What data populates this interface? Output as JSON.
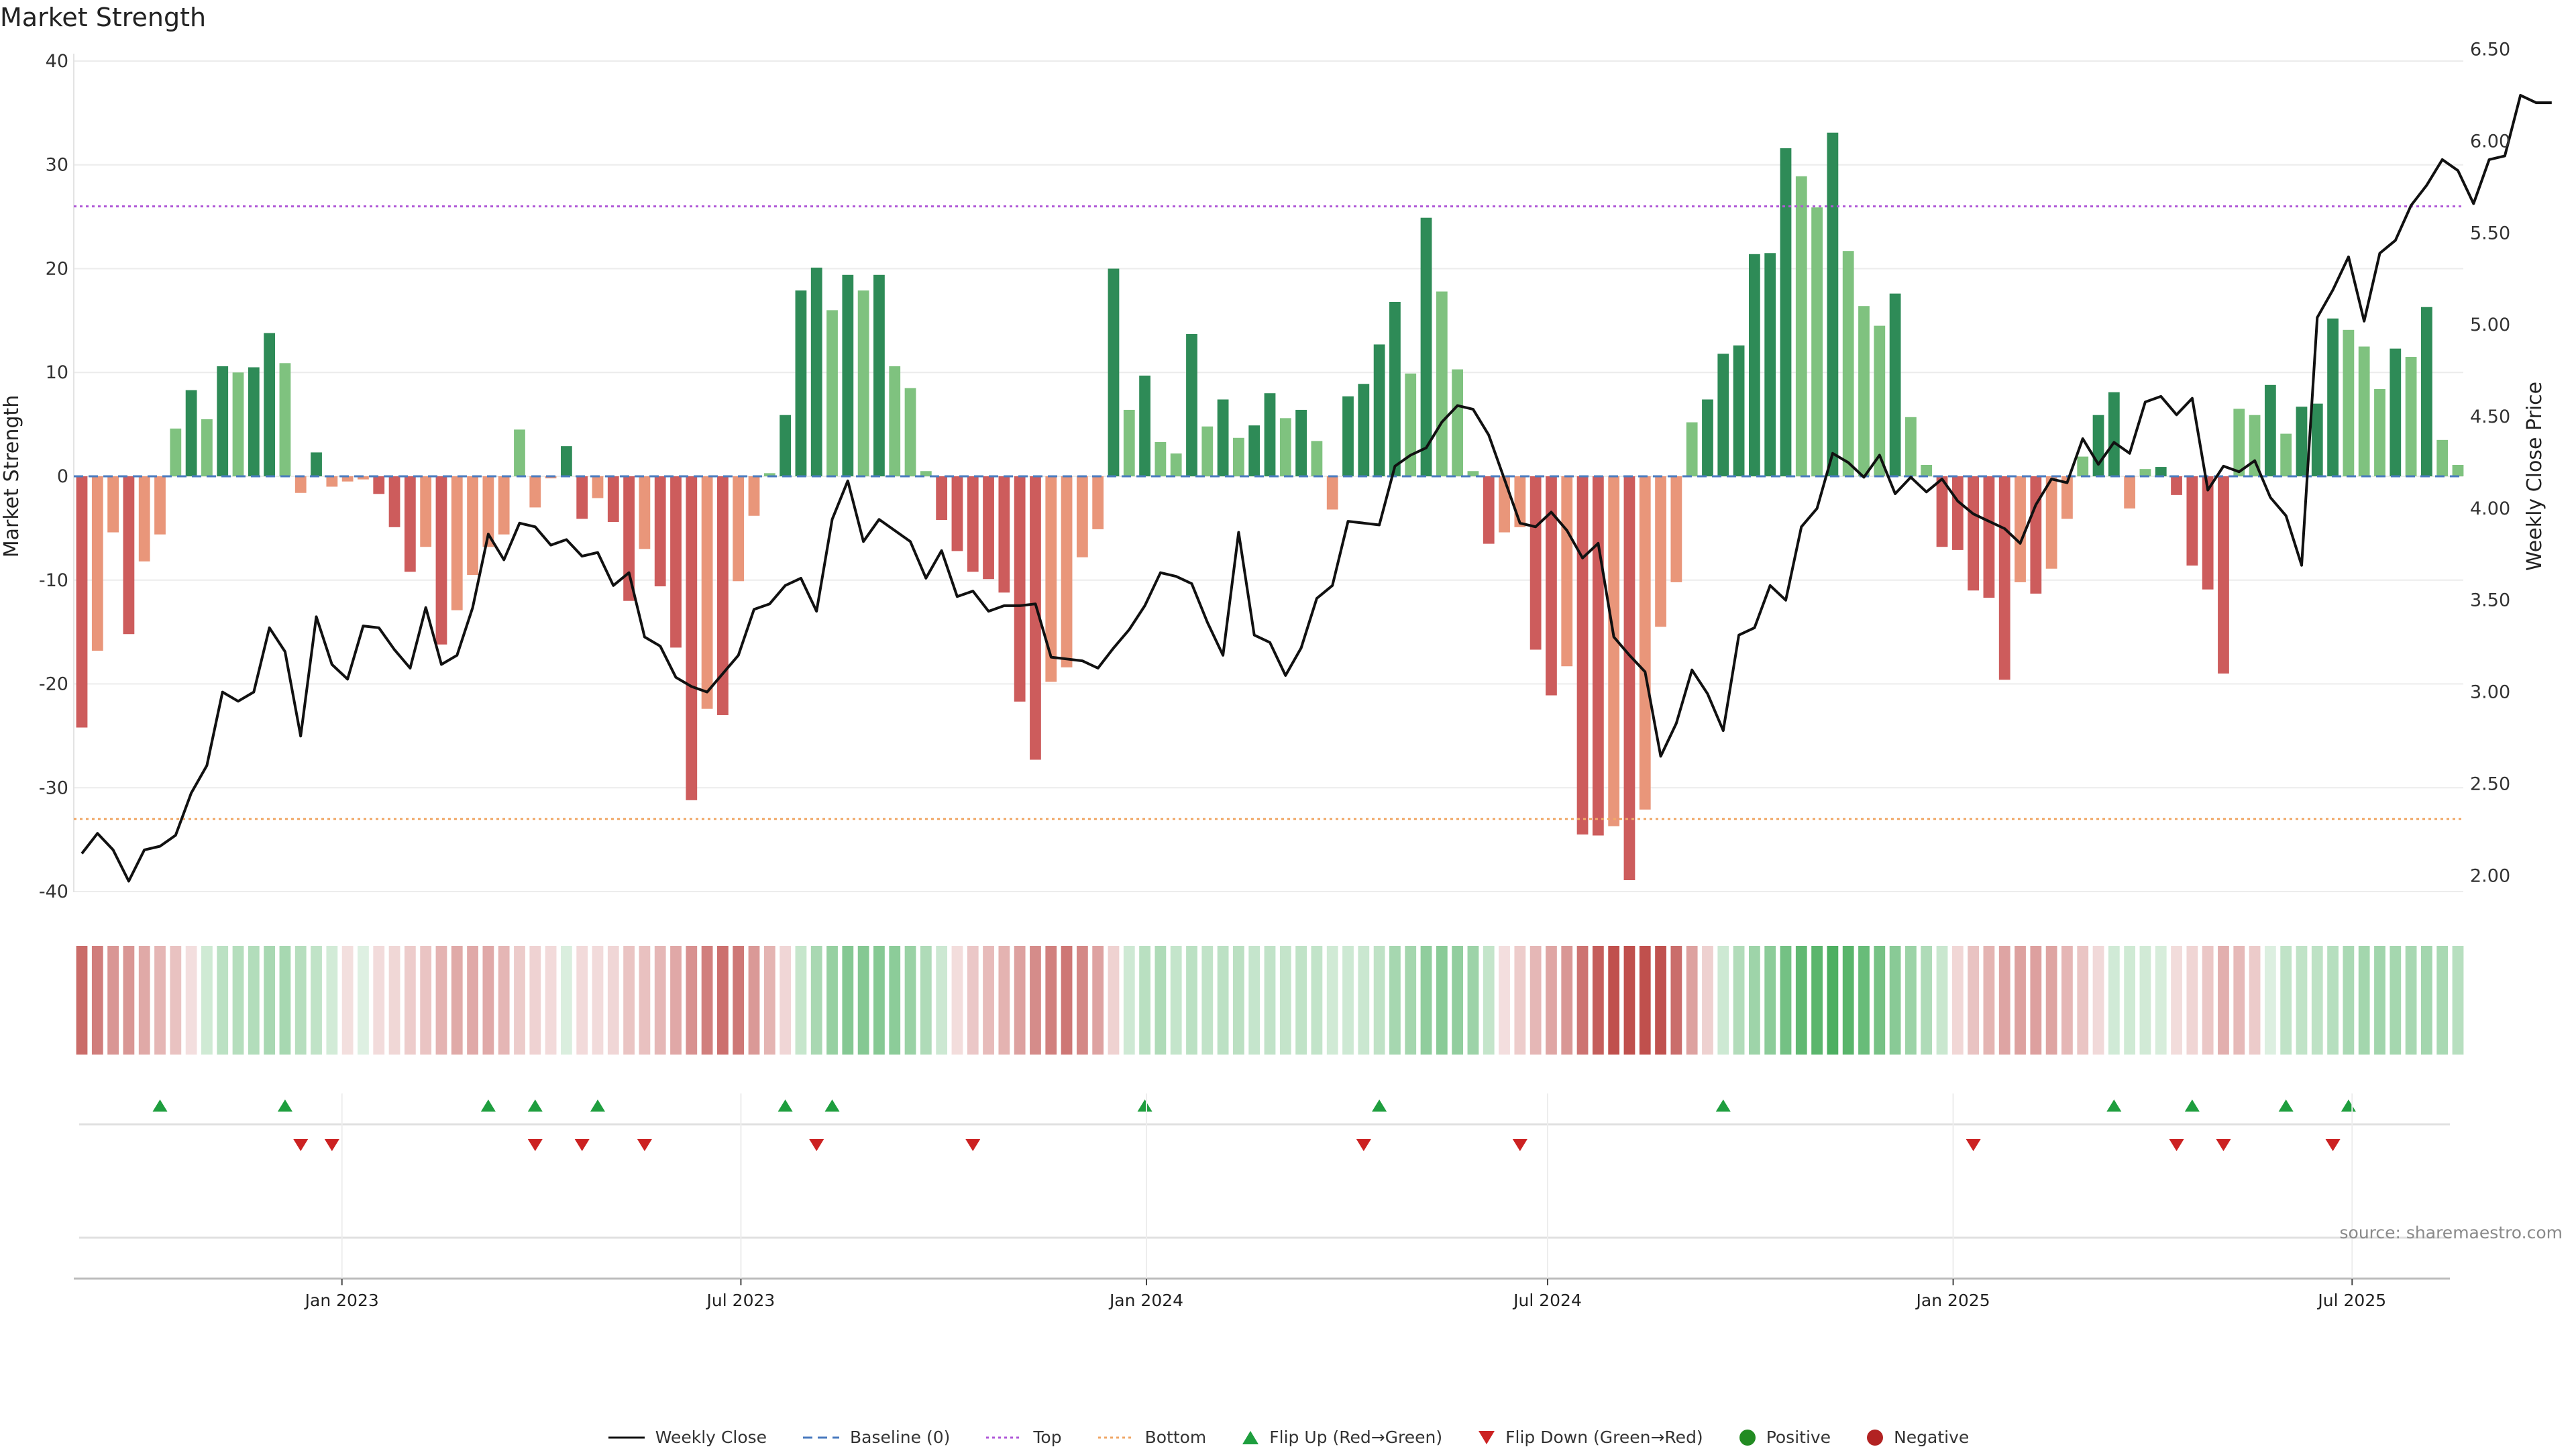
{
  "chart_data": {
    "type": "bar",
    "title": "Market Strength",
    "ylabel": "Market Strength",
    "y2label": "Weekly Close Price",
    "ylim": [
      -42,
      42
    ],
    "y2lim": [
      1.8,
      6.55
    ],
    "yticks": [
      40,
      30,
      20,
      10,
      0,
      -10,
      -20,
      -30,
      -40
    ],
    "y2ticks": [
      "6.50",
      "6.00",
      "5.50",
      "5.00",
      "4.50",
      "4.00",
      "3.50",
      "3.00",
      "2.50",
      "2.00"
    ],
    "x_start": "2022-09-05",
    "x_end": "2025-08-18",
    "x_tick_labels": [
      {
        "date": "2023-01-01",
        "label": "Jan 2023"
      },
      {
        "date": "2023-07-01",
        "label": "Jul 2023"
      },
      {
        "date": "2024-01-01",
        "label": "Jan 2024"
      },
      {
        "date": "2024-07-01",
        "label": "Jul 2024"
      },
      {
        "date": "2025-01-01",
        "label": "Jan 2025"
      },
      {
        "date": "2025-07-01",
        "label": "Jul 2025"
      }
    ],
    "top_threshold": 26,
    "bottom_threshold": -33,
    "strength": [
      -24.2,
      -16.8,
      -5.4,
      -15.2,
      -8.2,
      -5.6,
      4.6,
      8.3,
      5.5,
      10.6,
      10,
      10.5,
      13.8,
      10.9,
      -1.6,
      2.3,
      -1,
      -0.5,
      -0.3,
      -1.7,
      -4.9,
      -9.2,
      -6.8,
      -16.2,
      -12.9,
      -9.5,
      -6.8,
      -5.6,
      4.5,
      -3,
      -0.2,
      2.9,
      -4.1,
      -2.1,
      -4.4,
      -12,
      -7,
      -10.6,
      -16.5,
      -31.2,
      -22.4,
      -23,
      -10.1,
      -3.8,
      0.3,
      5.9,
      17.9,
      20.1,
      16,
      19.4,
      17.9,
      19.4,
      10.6,
      8.5,
      0.5,
      -4.2,
      -7.2,
      -9.2,
      -9.9,
      -11.2,
      -21.7,
      -27.3,
      -19.8,
      -18.4,
      -7.8,
      -5.1,
      20,
      6.4,
      9.7,
      3.3,
      2.2,
      13.7,
      4.8,
      7.4,
      3.7,
      4.9,
      8,
      5.6,
      6.4,
      3.4,
      -3.2,
      7.7,
      8.9,
      12.7,
      16.8,
      9.9,
      24.9,
      17.8,
      10.3,
      0.5,
      -6.5,
      -5.4,
      -4.9,
      -16.7,
      -21.1,
      -18.3,
      -34.5,
      -34.6,
      -33.7,
      -38.9,
      -32.1,
      -14.5,
      -10.2,
      5.2,
      7.4,
      11.8,
      12.6,
      21.4,
      21.5,
      31.6,
      28.9,
      25.9,
      33.1,
      21.7,
      16.4,
      14.5,
      17.6,
      5.7,
      1.1,
      -6.8,
      -7.1,
      -11,
      -11.7,
      -19.6,
      -10.2,
      -11.3,
      -8.9,
      -4.1,
      1.9,
      5.9,
      8.1,
      -3.1,
      0.7,
      0.9,
      -1.8,
      -8.6,
      -10.9,
      -19,
      6.5,
      5.9,
      8.8,
      4.1,
      6.7,
      7,
      15.2,
      14.1,
      12.5,
      8.4,
      12.3,
      11.5,
      16.3,
      3.5,
      1.1
    ],
    "close": [
      2.12,
      2.23,
      2.14,
      1.97,
      2.14,
      2.16,
      2.22,
      2.45,
      2.6,
      3,
      2.95,
      3,
      3.35,
      3.22,
      2.76,
      3.41,
      3.15,
      3.07,
      3.36,
      3.35,
      3.23,
      3.13,
      3.46,
      3.15,
      3.2,
      3.46,
      3.86,
      3.72,
      3.92,
      3.9,
      3.8,
      3.83,
      3.74,
      3.76,
      3.58,
      3.65,
      3.3,
      3.25,
      3.08,
      3.03,
      3,
      3.1,
      3.2,
      3.45,
      3.48,
      3.58,
      3.62,
      3.44,
      3.94,
      4.15,
      3.82,
      3.94,
      3.88,
      3.82,
      3.62,
      3.77,
      3.52,
      3.55,
      3.44,
      3.47,
      3.47,
      3.48,
      3.19,
      3.18,
      3.17,
      3.13,
      3.24,
      3.34,
      3.47,
      3.65,
      3.63,
      3.59,
      3.38,
      3.2,
      3.87,
      3.31,
      3.27,
      3.09,
      3.24,
      3.51,
      3.58,
      3.93,
      3.92,
      3.91,
      4.23,
      4.29,
      4.33,
      4.47,
      4.56,
      4.54,
      4.4,
      4.16,
      3.92,
      3.9,
      3.98,
      3.88,
      3.73,
      3.81,
      3.3,
      3.2,
      3.11,
      2.65,
      2.83,
      3.12,
      2.99,
      2.79,
      3.31,
      3.35,
      3.58,
      3.5,
      3.9,
      4,
      4.3,
      4.25,
      4.17,
      4.29,
      4.08,
      4.17,
      4.09,
      4.16,
      4.04,
      3.97,
      3.93,
      3.89,
      3.81,
      4.02,
      4.16,
      4.14,
      4.38,
      4.24,
      4.36,
      4.3,
      4.58,
      4.61,
      4.51,
      4.6,
      4.1,
      4.23,
      4.2,
      4.26,
      4.06,
      3.96,
      3.69,
      5.04,
      5.19,
      5.37,
      5.02,
      5.39,
      5.46,
      5.65,
      5.76,
      5.9,
      5.84,
      5.66,
      5.9,
      5.92,
      6.25,
      6.21,
      6.21
    ],
    "flip_up_indices": [
      5,
      13,
      26,
      29,
      33,
      45,
      48,
      68,
      83,
      105,
      130,
      135,
      141,
      145
    ],
    "flip_down_indices": [
      14,
      16,
      29,
      32,
      36,
      47,
      57,
      82,
      92,
      121,
      134,
      137,
      144
    ],
    "series": [
      {
        "name": "Weekly Close"
      },
      {
        "name": "Baseline (0)"
      },
      {
        "name": "Top"
      },
      {
        "name": "Bottom"
      },
      {
        "name": "Flip Up (Red→Green)"
      },
      {
        "name": "Flip Down (Green→Red)"
      },
      {
        "name": "Positive"
      },
      {
        "name": "Negative"
      }
    ],
    "colors": {
      "pos_dark": "#2e8b57",
      "pos_light": "#7fc27f",
      "neg_dark": "#cd5c5c",
      "neg_light": "#e9967a",
      "close_line": "#111111",
      "baseline": "#4a7bbf",
      "top": "#b05ad8",
      "bottom": "#f0a868",
      "flip_up": "#1e9e3e",
      "flip_down": "#cc2222",
      "positive_dot": "#228b22",
      "negative_dot": "#b22222"
    }
  },
  "source_text": "source: sharemaestro.com"
}
